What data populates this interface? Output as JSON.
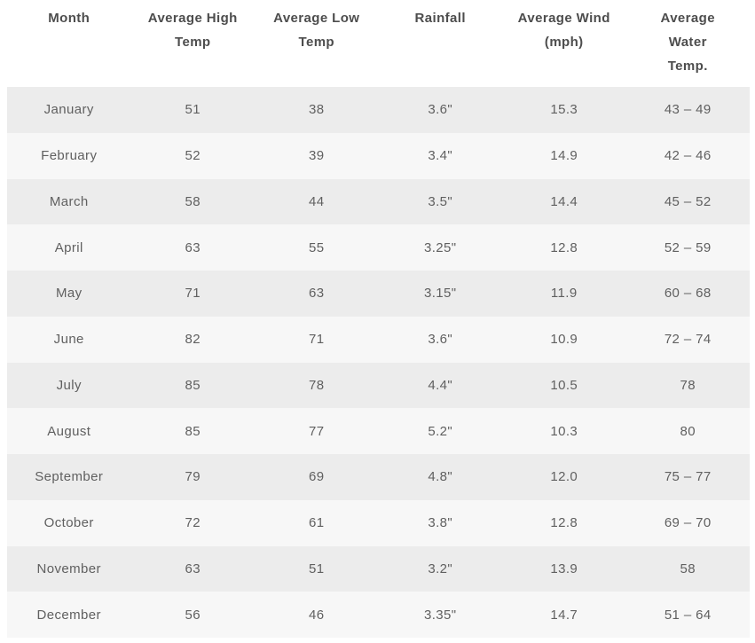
{
  "table": {
    "title": "monthly-climate-table",
    "colors": {
      "row_odd": "#ececec",
      "row_even": "#f7f7f7",
      "header_text": "#4d4d4d",
      "body_text": "#606060",
      "page_background": "#ffffff"
    },
    "columns": [
      {
        "key": "month",
        "label": "Month"
      },
      {
        "key": "high",
        "label": "Average High\nTemp"
      },
      {
        "key": "low",
        "label": "Average Low\nTemp"
      },
      {
        "key": "rainfall",
        "label": "Rainfall"
      },
      {
        "key": "wind",
        "label": "Average Wind\n(mph)"
      },
      {
        "key": "water",
        "label": "Average\nWater\nTemp."
      }
    ],
    "rows": [
      {
        "month": "January",
        "high": "51",
        "low": "38",
        "rainfall": "3.6\"",
        "wind": "15.3",
        "water": "43 – 49"
      },
      {
        "month": "February",
        "high": "52",
        "low": "39",
        "rainfall": "3.4\"",
        "wind": "14.9",
        "water": "42 – 46"
      },
      {
        "month": "March",
        "high": "58",
        "low": "44",
        "rainfall": "3.5\"",
        "wind": "14.4",
        "water": "45 – 52"
      },
      {
        "month": "April",
        "high": "63",
        "low": "55",
        "rainfall": "3.25\"",
        "wind": "12.8",
        "water": "52 – 59"
      },
      {
        "month": "May",
        "high": "71",
        "low": "63",
        "rainfall": "3.15\"",
        "wind": "11.9",
        "water": "60 – 68"
      },
      {
        "month": "June",
        "high": "82",
        "low": "71",
        "rainfall": "3.6\"",
        "wind": "10.9",
        "water": "72 – 74"
      },
      {
        "month": "July",
        "high": "85",
        "low": "78",
        "rainfall": "4.4\"",
        "wind": "10.5",
        "water": "78"
      },
      {
        "month": "August",
        "high": "85",
        "low": "77",
        "rainfall": "5.2\"",
        "wind": "10.3",
        "water": "80"
      },
      {
        "month": "September",
        "high": "79",
        "low": "69",
        "rainfall": "4.8\"",
        "wind": "12.0",
        "water": "75 – 77"
      },
      {
        "month": "October",
        "high": "72",
        "low": "61",
        "rainfall": "3.8\"",
        "wind": "12.8",
        "water": "69 – 70"
      },
      {
        "month": "November",
        "high": "63",
        "low": "51",
        "rainfall": "3.2\"",
        "wind": "13.9",
        "water": "58"
      },
      {
        "month": "December",
        "high": "56",
        "low": "46",
        "rainfall": "3.35\"",
        "wind": "14.7",
        "water": "51 – 64"
      }
    ],
    "chart_data": {
      "type": "table",
      "title": "Monthly averages: high temp, low temp, rainfall, wind, water temp",
      "categories": [
        "January",
        "February",
        "March",
        "April",
        "May",
        "June",
        "July",
        "August",
        "September",
        "October",
        "November",
        "December"
      ],
      "series": [
        {
          "name": "Average High Temp",
          "values": [
            51,
            52,
            58,
            63,
            71,
            82,
            85,
            85,
            79,
            72,
            63,
            56
          ]
        },
        {
          "name": "Average Low Temp",
          "values": [
            38,
            39,
            44,
            55,
            63,
            71,
            78,
            77,
            69,
            61,
            51,
            46
          ]
        },
        {
          "name": "Rainfall (in)",
          "values": [
            3.6,
            3.4,
            3.5,
            3.25,
            3.15,
            3.6,
            4.4,
            5.2,
            4.8,
            3.8,
            3.2,
            3.35
          ]
        },
        {
          "name": "Average Wind (mph)",
          "values": [
            15.3,
            14.9,
            14.4,
            12.8,
            11.9,
            10.9,
            10.5,
            10.3,
            12.0,
            12.8,
            13.9,
            14.7
          ]
        },
        {
          "name": "Average Water Temp",
          "values": [
            "43 – 49",
            "42 – 46",
            "45 – 52",
            "52 – 59",
            "60 – 68",
            "72 – 74",
            "78",
            "80",
            "75 – 77",
            "69 – 70",
            "58",
            "51 – 64"
          ]
        }
      ]
    }
  }
}
